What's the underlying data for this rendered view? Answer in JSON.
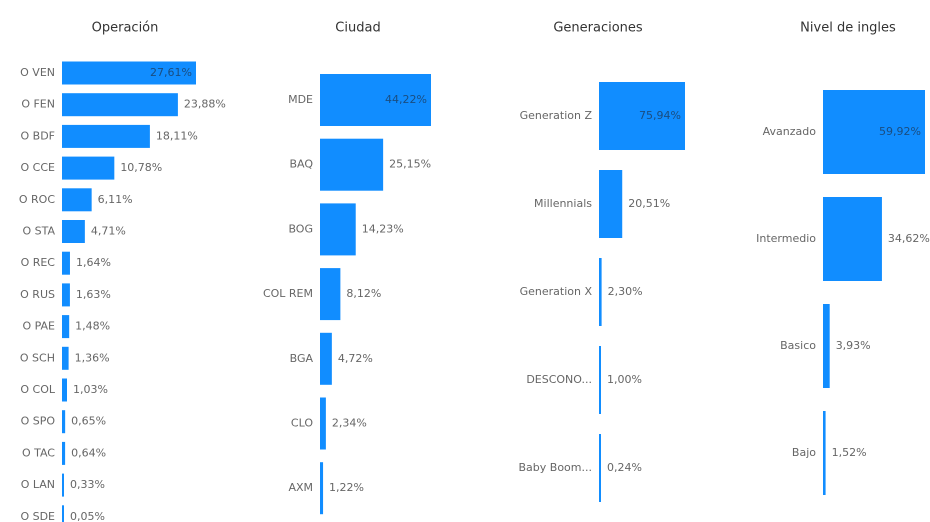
{
  "chart_data": [
    {
      "type": "bar",
      "orientation": "horizontal",
      "title": "Operación",
      "color": "#118dff",
      "categories": [
        "O VEN",
        "O FEN",
        "O BDF",
        "O CCE",
        "O ROC",
        "O STA",
        "O REC",
        "O RUS",
        "O PAE",
        "O SCH",
        "O COL",
        "O SPO",
        "O TAC",
        "O LAN",
        "O SDE"
      ],
      "values": [
        27.61,
        23.88,
        18.11,
        10.78,
        6.11,
        4.71,
        1.64,
        1.63,
        1.48,
        1.36,
        1.03,
        0.65,
        0.64,
        0.33,
        0.05
      ],
      "value_labels": [
        "27,61%",
        "23,88%",
        "18,11%",
        "10,78%",
        "6,11%",
        "4,71%",
        "1,64%",
        "1,63%",
        "1,48%",
        "1,36%",
        "1,03%",
        "0,65%",
        "0,64%",
        "0,33%",
        "0,05%"
      ]
    },
    {
      "type": "bar",
      "orientation": "horizontal",
      "title": "Ciudad",
      "color": "#118dff",
      "categories": [
        "MDE",
        "BAQ",
        "BOG",
        "COL REM",
        "BGA",
        "CLO",
        "AXM"
      ],
      "values": [
        44.22,
        25.15,
        14.23,
        8.12,
        4.72,
        2.34,
        1.22
      ],
      "value_labels": [
        "44,22%",
        "25,15%",
        "14,23%",
        "8,12%",
        "4,72%",
        "2,34%",
        "1,22%"
      ]
    },
    {
      "type": "bar",
      "orientation": "horizontal",
      "title": "Generaciones",
      "color": "#118dff",
      "categories": [
        "Generation Z",
        "Millennials",
        "Generation X",
        "DESCONO...",
        "Baby Boom..."
      ],
      "values": [
        75.94,
        20.51,
        2.3,
        1.0,
        0.24
      ],
      "value_labels": [
        "75,94%",
        "20,51%",
        "2,30%",
        "1,00%",
        "0,24%"
      ]
    },
    {
      "type": "bar",
      "orientation": "horizontal",
      "title": "Nivel de ingles",
      "color": "#118dff",
      "categories": [
        "Avanzado",
        "Intermedio",
        "Basico",
        "Bajo"
      ],
      "values": [
        59.92,
        34.62,
        3.93,
        1.52
      ],
      "value_labels": [
        "59,92%",
        "34,62%",
        "3,93%",
        "1,52%"
      ]
    }
  ]
}
